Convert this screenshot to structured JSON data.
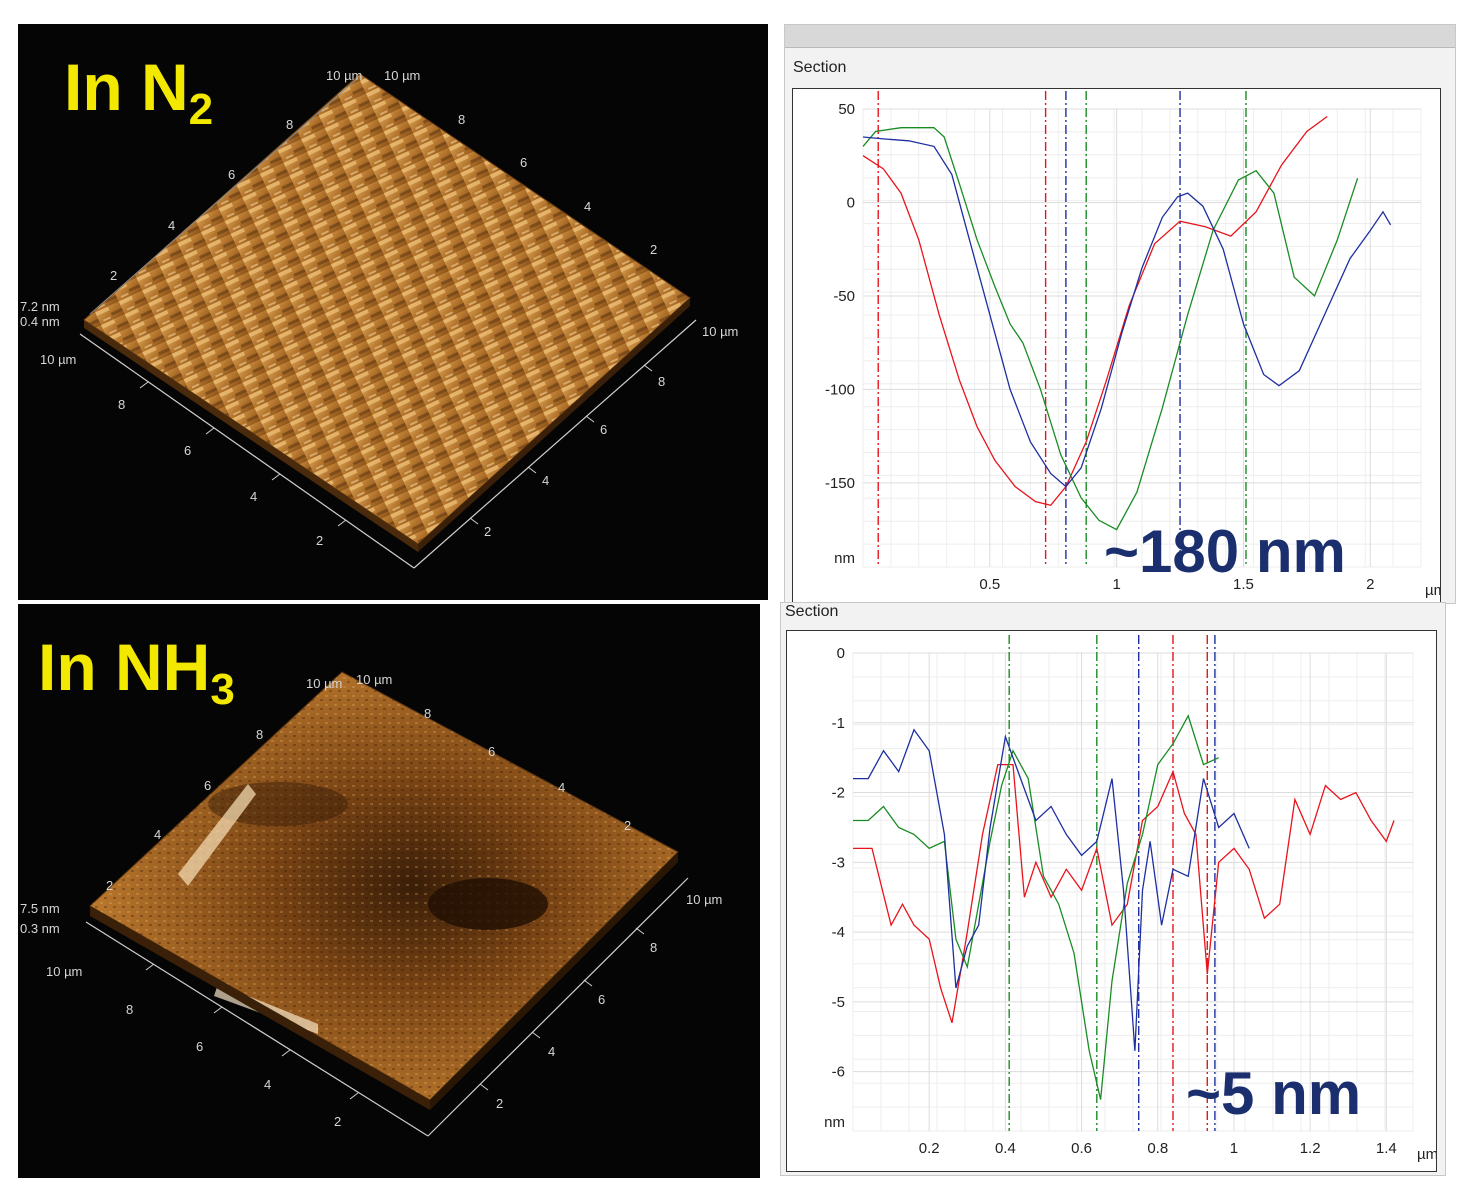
{
  "afm_n2": {
    "title_main": "In N",
    "title_sub": "2",
    "z_top": "7.2 nm",
    "z_bottom": "0.4 nm",
    "axis_right_ticks": [
      "2",
      "4",
      "6",
      "8",
      "10 µm"
    ],
    "axis_front_ticks": [
      "2",
      "4",
      "6",
      "8",
      "10 µm"
    ],
    "axis_back_left_ticks": [
      "2",
      "4",
      "6",
      "8",
      "10 µm"
    ],
    "axis_back_right_ticks": [
      "2",
      "4",
      "6",
      "8",
      "10 µm"
    ]
  },
  "afm_nh3": {
    "title_main": "In NH",
    "title_sub": "3",
    "z_top": "7.5 nm",
    "z_bottom": "0.3 nm",
    "axis_right_ticks": [
      "2",
      "4",
      "6",
      "8",
      "10 µm"
    ],
    "axis_front_ticks": [
      "2",
      "4",
      "6",
      "8",
      "10 µm"
    ],
    "axis_back_left_ticks": [
      "2",
      "4",
      "6",
      "8",
      "10 µm"
    ],
    "axis_back_right_ticks": [
      "2",
      "4",
      "6",
      "8",
      "10 µm"
    ]
  },
  "colors": {
    "title_yellow": "#f3e800",
    "annotation_navy": "#1b2f6e",
    "red": "#e8141c",
    "green": "#1a8c24",
    "blue": "#1e2fa0",
    "grid": "#dcdcdc"
  },
  "chart_data": [
    {
      "type": "line",
      "window_title": "Section",
      "annotation": "~180 nm",
      "ylabel": "nm",
      "xlabel": "µm",
      "xlim": [
        0,
        2.2
      ],
      "ylim": [
        -195,
        50
      ],
      "xticks": [
        0.5,
        1,
        1.5,
        2
      ],
      "xtick_labels": [
        "0.5",
        "1",
        "1.5",
        "2"
      ],
      "yticks": [
        50,
        0,
        -50,
        -100,
        -150
      ],
      "ytick_labels": [
        "50",
        "0",
        "-50",
        "-100",
        "-150"
      ],
      "grid": true,
      "series": [
        {
          "color": "red",
          "x": [
            0.0,
            0.08,
            0.15,
            0.22,
            0.3,
            0.38,
            0.45,
            0.52,
            0.6,
            0.68,
            0.74,
            0.8,
            0.88,
            0.96,
            1.05,
            1.15,
            1.25,
            1.35,
            1.45,
            1.55,
            1.65,
            1.75,
            1.83
          ],
          "y": [
            25,
            18,
            5,
            -20,
            -60,
            -95,
            -120,
            -138,
            -152,
            -160,
            -162,
            -152,
            -128,
            -95,
            -55,
            -22,
            -10,
            -13,
            -18,
            -5,
            20,
            38,
            46
          ]
        },
        {
          "color": "green",
          "x": [
            0.0,
            0.05,
            0.15,
            0.28,
            0.32,
            0.38,
            0.45,
            0.52,
            0.58,
            0.63,
            0.7,
            0.78,
            0.86,
            0.93,
            1.0,
            1.08,
            1.18,
            1.28,
            1.38,
            1.48,
            1.55,
            1.62,
            1.7,
            1.78,
            1.87,
            1.95
          ],
          "y": [
            30,
            38,
            40,
            40,
            35,
            10,
            -20,
            -45,
            -65,
            -75,
            -100,
            -135,
            -158,
            -170,
            -175,
            -155,
            -110,
            -60,
            -15,
            12,
            17,
            5,
            -40,
            -50,
            -20,
            13
          ]
        },
        {
          "color": "blue",
          "x": [
            0.0,
            0.08,
            0.18,
            0.28,
            0.35,
            0.42,
            0.5,
            0.58,
            0.66,
            0.74,
            0.8,
            0.86,
            0.94,
            1.02,
            1.1,
            1.18,
            1.24,
            1.28,
            1.34,
            1.42,
            1.5,
            1.58,
            1.64,
            1.72,
            1.82,
            1.92,
            2.0,
            2.05,
            2.08
          ],
          "y": [
            35,
            34,
            33,
            30,
            15,
            -20,
            -60,
            -100,
            -128,
            -145,
            -152,
            -142,
            -110,
            -70,
            -35,
            -8,
            3,
            5,
            -2,
            -25,
            -65,
            -92,
            -98,
            -90,
            -60,
            -30,
            -15,
            -5,
            -12
          ]
        }
      ],
      "markers": [
        {
          "color": "red",
          "x": 0.06
        },
        {
          "color": "red",
          "x": 0.72
        },
        {
          "color": "blue",
          "x": 0.8
        },
        {
          "color": "green",
          "x": 0.88
        },
        {
          "color": "blue",
          "x": 1.25
        },
        {
          "color": "green",
          "x": 1.51
        }
      ]
    },
    {
      "type": "line",
      "window_title": "Section",
      "annotation": "~5 nm",
      "ylabel": "nm",
      "xlabel": "µm",
      "xlim": [
        0,
        1.47
      ],
      "ylim": [
        -6.85,
        0
      ],
      "xticks": [
        0.2,
        0.4,
        0.6,
        0.8,
        1,
        1.2,
        1.4
      ],
      "xtick_labels": [
        "0.2",
        "0.4",
        "0.6",
        "0.8",
        "1",
        "1.2",
        "1.4"
      ],
      "yticks": [
        0,
        -1,
        -2,
        -3,
        -4,
        -5,
        -6
      ],
      "ytick_labels": [
        "0",
        "-1",
        "-2",
        "-3",
        "-4",
        "-5",
        "-6"
      ],
      "grid": true,
      "series": [
        {
          "color": "red",
          "x": [
            0.0,
            0.05,
            0.1,
            0.13,
            0.16,
            0.2,
            0.23,
            0.26,
            0.3,
            0.34,
            0.38,
            0.42,
            0.45,
            0.48,
            0.52,
            0.56,
            0.6,
            0.64,
            0.68,
            0.72,
            0.76,
            0.8,
            0.84,
            0.87,
            0.9,
            0.93,
            0.96,
            1.0,
            1.04,
            1.08,
            1.12,
            1.16,
            1.2,
            1.24,
            1.28,
            1.32,
            1.36,
            1.4,
            1.42
          ],
          "y": [
            -2.8,
            -2.8,
            -3.9,
            -3.6,
            -3.9,
            -4.1,
            -4.8,
            -5.3,
            -4.0,
            -2.6,
            -1.6,
            -1.6,
            -3.5,
            -3.0,
            -3.5,
            -3.1,
            -3.4,
            -2.8,
            -3.9,
            -3.6,
            -2.4,
            -2.2,
            -1.7,
            -2.3,
            -2.6,
            -4.6,
            -3.0,
            -2.8,
            -3.1,
            -3.8,
            -3.6,
            -2.1,
            -2.6,
            -1.9,
            -2.1,
            -2.0,
            -2.4,
            -2.7,
            -2.4
          ]
        },
        {
          "color": "green",
          "x": [
            0.0,
            0.04,
            0.08,
            0.12,
            0.16,
            0.2,
            0.24,
            0.27,
            0.3,
            0.33,
            0.36,
            0.39,
            0.42,
            0.46,
            0.5,
            0.54,
            0.58,
            0.62,
            0.65,
            0.68,
            0.72,
            0.76,
            0.8,
            0.84,
            0.88,
            0.92,
            0.96
          ],
          "y": [
            -2.4,
            -2.4,
            -2.2,
            -2.5,
            -2.6,
            -2.8,
            -2.7,
            -4.1,
            -4.5,
            -3.6,
            -2.7,
            -1.9,
            -1.4,
            -1.8,
            -3.2,
            -3.6,
            -4.3,
            -5.7,
            -6.4,
            -4.7,
            -3.3,
            -2.6,
            -1.6,
            -1.3,
            -0.9,
            -1.6,
            -1.5
          ]
        },
        {
          "color": "blue",
          "x": [
            0.0,
            0.04,
            0.08,
            0.12,
            0.16,
            0.2,
            0.24,
            0.27,
            0.3,
            0.33,
            0.36,
            0.4,
            0.44,
            0.48,
            0.52,
            0.56,
            0.6,
            0.64,
            0.68,
            0.71,
            0.74,
            0.76,
            0.78,
            0.81,
            0.84,
            0.88,
            0.92,
            0.96,
            1.0,
            1.04
          ],
          "y": [
            -1.8,
            -1.8,
            -1.4,
            -1.7,
            -1.1,
            -1.4,
            -2.6,
            -4.8,
            -4.2,
            -3.9,
            -2.5,
            -1.2,
            -1.8,
            -2.4,
            -2.2,
            -2.6,
            -2.9,
            -2.7,
            -1.8,
            -3.4,
            -5.7,
            -3.4,
            -2.7,
            -3.9,
            -3.1,
            -3.2,
            -1.8,
            -2.5,
            -2.3,
            -2.8
          ]
        }
      ],
      "markers": [
        {
          "color": "green",
          "x": 0.41
        },
        {
          "color": "green",
          "x": 0.64
        },
        {
          "color": "blue",
          "x": 0.75
        },
        {
          "color": "red",
          "x": 0.84
        },
        {
          "color": "red",
          "x": 0.93
        },
        {
          "color": "blue",
          "x": 0.95
        }
      ]
    }
  ]
}
